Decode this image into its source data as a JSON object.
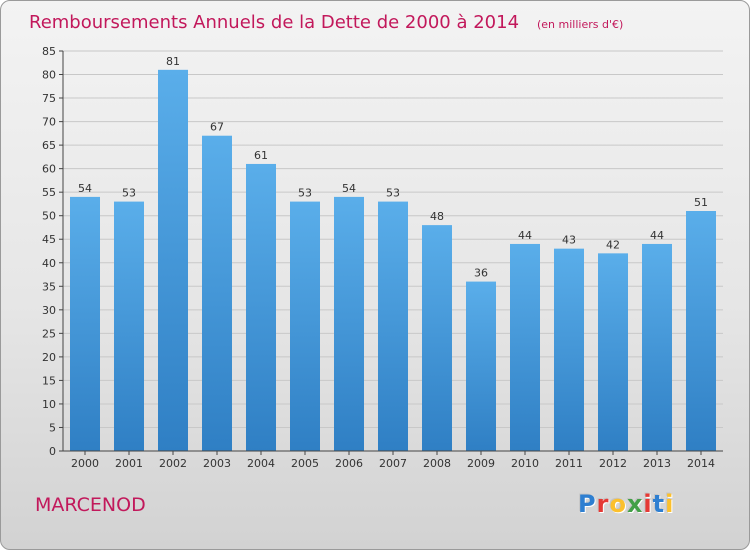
{
  "chart_data": {
    "type": "bar",
    "title": "Remboursements Annuels de la Dette de 2000 à 2014",
    "unit_note": "(en milliers d'€)",
    "categories": [
      "2000",
      "2001",
      "2002",
      "2003",
      "2004",
      "2005",
      "2006",
      "2007",
      "2008",
      "2009",
      "2010",
      "2011",
      "2012",
      "2013",
      "2014"
    ],
    "values": [
      54,
      53,
      81,
      67,
      61,
      53,
      54,
      53,
      48,
      36,
      44,
      43,
      42,
      44,
      51
    ],
    "ylim": [
      0,
      85
    ],
    "yticks": [
      0,
      5,
      10,
      15,
      20,
      25,
      30,
      35,
      40,
      45,
      50,
      55,
      60,
      65,
      70,
      75,
      80,
      85
    ],
    "grid": true,
    "bar_color_top": "#5aaeea",
    "bar_color_bottom": "#2f7fc4"
  },
  "commune": "MARCENOD",
  "logo": {
    "letters": [
      "P",
      "r",
      "o",
      "x",
      "i",
      "t",
      "i"
    ],
    "colors": [
      "#2e7fd1",
      "#e53935",
      "#fbc02d",
      "#43a047",
      "#e53935",
      "#2e7fd1",
      "#fbc02d"
    ]
  }
}
